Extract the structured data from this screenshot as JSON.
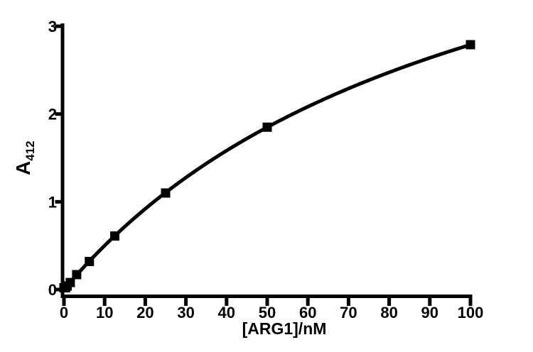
{
  "chart_data": {
    "type": "scatter",
    "title": "",
    "xlabel": "[ARG1]/nM",
    "ylabel": "A412",
    "ylabel_base": "A",
    "ylabel_subscript": "412",
    "x": [
      0,
      0.39,
      0.78,
      1.56,
      3.125,
      6.25,
      12.5,
      25,
      50,
      100
    ],
    "y": [
      0.02,
      0.02,
      0.04,
      0.08,
      0.17,
      0.32,
      0.61,
      1.1,
      1.85,
      2.79
    ],
    "x_ticks": [
      0,
      10,
      20,
      30,
      40,
      50,
      60,
      70,
      80,
      90,
      100
    ],
    "y_ticks": [
      0,
      1,
      2,
      3
    ],
    "x_tick_labels": [
      "0",
      "10",
      "20",
      "30",
      "40",
      "50",
      "60",
      "70",
      "80",
      "90",
      "100"
    ],
    "y_tick_labels": [
      "0",
      "1",
      "2",
      "3"
    ],
    "xlim": [
      0,
      100
    ],
    "ylim": [
      0,
      3
    ],
    "marker": "filled-square",
    "marker_size_px": 13,
    "fit_curve": {
      "model": "one-site-saturation-hyperbola",
      "ymax": 5.67,
      "k_nm": 103.3
    },
    "line_color": "#000000",
    "marker_color": "#000000",
    "axis_color": "#000000",
    "background_color": "#ffffff",
    "grid": false,
    "legend": null
  }
}
